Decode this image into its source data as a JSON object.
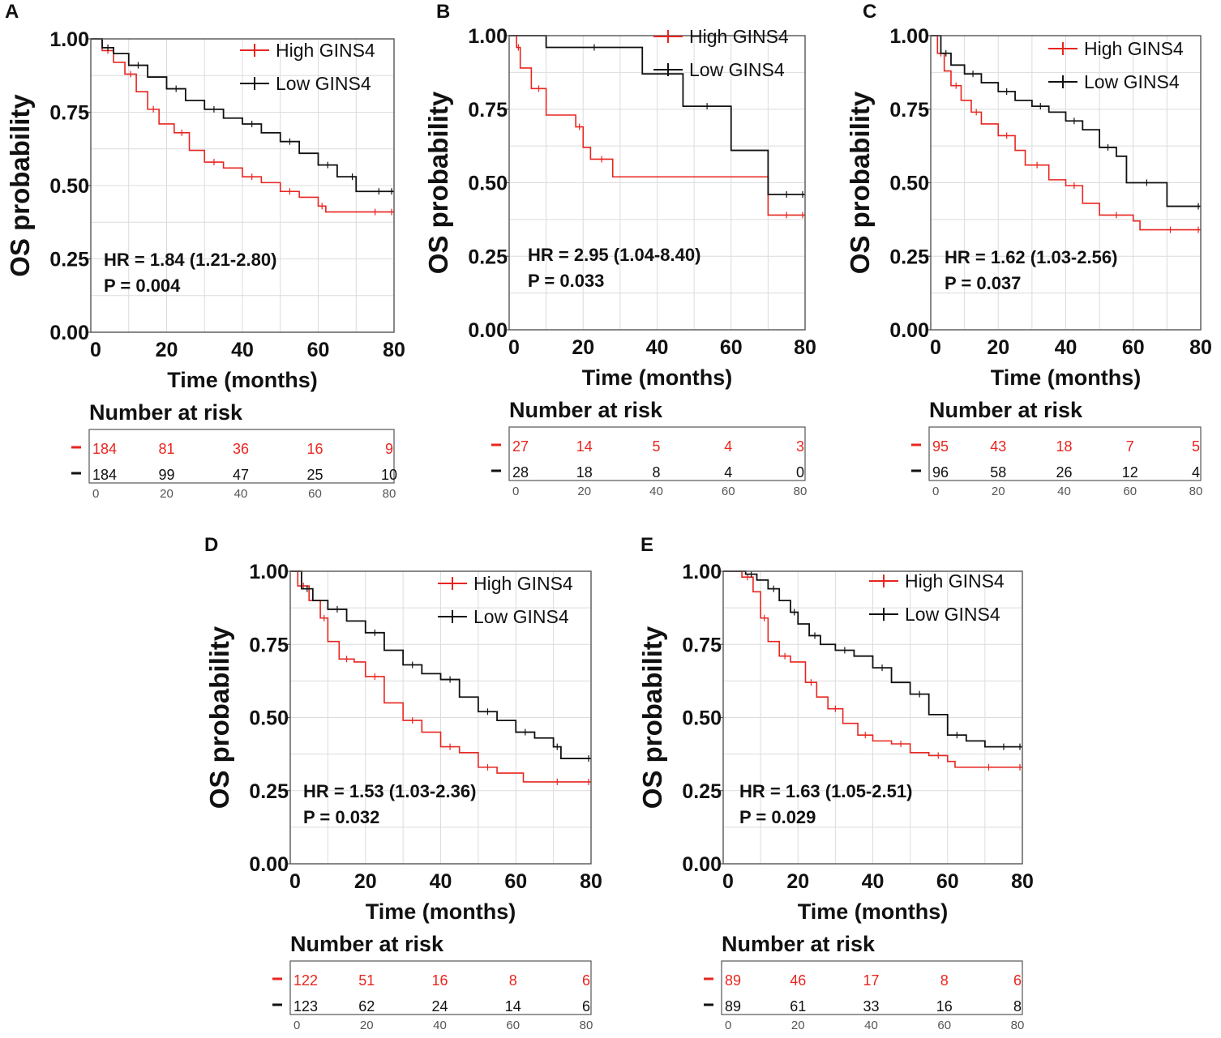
{
  "colors": {
    "high": "#e8251f",
    "low": "#111111",
    "grid": "#dcdcdc",
    "frame": "#555555",
    "text": "#111111"
  },
  "chart_data": [
    {
      "type": "line",
      "panel_label": "A",
      "ylabel": "OS probability",
      "xlabel": "Time (months)",
      "xlim": [
        0,
        80
      ],
      "ylim": [
        0,
        1
      ],
      "x_ticks": [
        "0",
        "20",
        "40",
        "60",
        "80"
      ],
      "y_ticks": [
        "0.00",
        "0.25",
        "0.50",
        "0.75",
        "1.00"
      ],
      "legend": [
        "High GINS4",
        "Low GINS4"
      ],
      "hr_text": "HR = 1.84 (1.21-2.80)",
      "p_text": "P = 0.004",
      "risk_title": "Number at risk",
      "risk_high": [
        "184",
        "81",
        "36",
        "16",
        "9"
      ],
      "risk_low": [
        "184",
        "99",
        "47",
        "25",
        "10"
      ],
      "series": [
        {
          "name": "High GINS4",
          "x": [
            0,
            3,
            6,
            9,
            12,
            15,
            18,
            22,
            26,
            30,
            35,
            40,
            45,
            50,
            55,
            60,
            62,
            70,
            80
          ],
          "y": [
            1.0,
            0.96,
            0.92,
            0.88,
            0.82,
            0.76,
            0.71,
            0.68,
            0.62,
            0.58,
            0.56,
            0.53,
            0.51,
            0.48,
            0.46,
            0.43,
            0.41,
            0.41,
            0.41
          ]
        },
        {
          "name": "Low GINS4",
          "x": [
            0,
            3,
            6,
            10,
            15,
            20,
            25,
            30,
            35,
            40,
            45,
            50,
            55,
            60,
            65,
            68,
            70,
            72,
            80
          ],
          "y": [
            1.0,
            0.97,
            0.95,
            0.91,
            0.87,
            0.83,
            0.79,
            0.76,
            0.73,
            0.71,
            0.68,
            0.65,
            0.61,
            0.57,
            0.53,
            0.53,
            0.48,
            0.48,
            0.48
          ]
        }
      ]
    },
    {
      "type": "line",
      "panel_label": "B",
      "ylabel": "OS probability",
      "xlabel": "Time (months)",
      "xlim": [
        0,
        80
      ],
      "ylim": [
        0,
        1
      ],
      "x_ticks": [
        "0",
        "20",
        "40",
        "60",
        "80"
      ],
      "y_ticks": [
        "0.00",
        "0.25",
        "0.50",
        "0.75",
        "1.00"
      ],
      "legend": [
        "High GINS4",
        "Low GINS4"
      ],
      "hr_text": "HR = 2.95 (1.04-8.40)",
      "p_text": "P = 0.033",
      "risk_title": "Number at risk",
      "risk_high": [
        "27",
        "14",
        "5",
        "4",
        "3"
      ],
      "risk_low": [
        "28",
        "18",
        "8",
        "4",
        "0"
      ],
      "series": [
        {
          "name": "High GINS4",
          "x": [
            0,
            2,
            3,
            6,
            10,
            18,
            20,
            22,
            28,
            70,
            80
          ],
          "y": [
            1.0,
            0.96,
            0.89,
            0.82,
            0.73,
            0.69,
            0.62,
            0.58,
            0.52,
            0.39,
            0.39
          ]
        },
        {
          "name": "Low GINS4",
          "x": [
            0,
            10,
            36,
            47,
            60,
            70,
            80
          ],
          "y": [
            1.0,
            0.96,
            0.87,
            0.76,
            0.61,
            0.46,
            0.46
          ]
        }
      ]
    },
    {
      "type": "line",
      "panel_label": "C",
      "ylabel": "OS probability",
      "xlabel": "Time (months)",
      "xlim": [
        0,
        80
      ],
      "ylim": [
        0,
        1
      ],
      "x_ticks": [
        "0",
        "20",
        "40",
        "60",
        "80"
      ],
      "y_ticks": [
        "0.00",
        "0.25",
        "0.50",
        "0.75",
        "1.00"
      ],
      "legend": [
        "High GINS4",
        "Low GINS4"
      ],
      "hr_text": "HR = 1.62 (1.03-2.56)",
      "p_text": "P = 0.037",
      "risk_title": "Number at risk",
      "risk_high": [
        "95",
        "43",
        "18",
        "7",
        "5"
      ],
      "risk_low": [
        "96",
        "58",
        "26",
        "12",
        "4"
      ],
      "series": [
        {
          "name": "High GINS4",
          "x": [
            0,
            2,
            4,
            6,
            9,
            12,
            15,
            20,
            25,
            28,
            35,
            40,
            45,
            50,
            60,
            62,
            80
          ],
          "y": [
            1.0,
            0.94,
            0.88,
            0.83,
            0.78,
            0.74,
            0.7,
            0.66,
            0.61,
            0.56,
            0.51,
            0.49,
            0.43,
            0.39,
            0.37,
            0.34,
            0.34
          ]
        },
        {
          "name": "Low GINS4",
          "x": [
            0,
            3,
            6,
            10,
            15,
            20,
            25,
            30,
            35,
            40,
            45,
            50,
            55,
            58,
            70,
            80
          ],
          "y": [
            1.0,
            0.94,
            0.9,
            0.87,
            0.84,
            0.81,
            0.78,
            0.76,
            0.74,
            0.71,
            0.68,
            0.62,
            0.59,
            0.5,
            0.42,
            0.42
          ]
        }
      ]
    },
    {
      "type": "line",
      "panel_label": "D",
      "ylabel": "OS probability",
      "xlabel": "Time (months)",
      "xlim": [
        0,
        80
      ],
      "ylim": [
        0,
        1
      ],
      "x_ticks": [
        "0",
        "20",
        "40",
        "60",
        "80"
      ],
      "y_ticks": [
        "0.00",
        "0.25",
        "0.50",
        "0.75",
        "1.00"
      ],
      "legend": [
        "High GINS4",
        "Low GINS4"
      ],
      "hr_text": "HR = 1.53 (1.03-2.36)",
      "p_text": "P = 0.032",
      "risk_title": "Number at risk",
      "risk_high": [
        "122",
        "51",
        "16",
        "8",
        "6"
      ],
      "risk_low": [
        "123",
        "62",
        "24",
        "14",
        "6"
      ],
      "series": [
        {
          "name": "High GINS4",
          "x": [
            0,
            2,
            5,
            8,
            10,
            13,
            17,
            20,
            25,
            30,
            35,
            40,
            45,
            50,
            55,
            62,
            80
          ],
          "y": [
            1.0,
            0.95,
            0.9,
            0.84,
            0.76,
            0.7,
            0.69,
            0.64,
            0.55,
            0.49,
            0.45,
            0.4,
            0.38,
            0.33,
            0.31,
            0.28,
            0.28
          ]
        },
        {
          "name": "Low GINS4",
          "x": [
            0,
            3,
            6,
            10,
            15,
            20,
            25,
            30,
            35,
            40,
            45,
            50,
            55,
            60,
            65,
            70,
            72,
            80
          ],
          "y": [
            1.0,
            0.94,
            0.9,
            0.87,
            0.83,
            0.79,
            0.73,
            0.68,
            0.65,
            0.63,
            0.57,
            0.52,
            0.49,
            0.45,
            0.43,
            0.4,
            0.36,
            0.36
          ]
        }
      ]
    },
    {
      "type": "line",
      "panel_label": "E",
      "ylabel": "OS probability",
      "xlabel": "Time (months)",
      "xlim": [
        0,
        80
      ],
      "ylim": [
        0,
        1
      ],
      "x_ticks": [
        "0",
        "20",
        "40",
        "60",
        "80"
      ],
      "y_ticks": [
        "0.00",
        "0.25",
        "0.50",
        "0.75",
        "1.00"
      ],
      "legend": [
        "High GINS4",
        "Low GINS4"
      ],
      "hr_text": "HR = 1.63 (1.05-2.51)",
      "p_text": "P = 0.029",
      "risk_title": "Number at risk",
      "risk_high": [
        "89",
        "46",
        "17",
        "8",
        "6"
      ],
      "risk_low": [
        "89",
        "61",
        "33",
        "16",
        "8"
      ],
      "series": [
        {
          "name": "High GINS4",
          "x": [
            0,
            5,
            8,
            10,
            12,
            15,
            18,
            22,
            25,
            28,
            32,
            36,
            40,
            45,
            50,
            55,
            60,
            62,
            80
          ],
          "y": [
            1.0,
            0.98,
            0.93,
            0.84,
            0.76,
            0.71,
            0.69,
            0.62,
            0.57,
            0.53,
            0.48,
            0.44,
            0.42,
            0.41,
            0.38,
            0.37,
            0.35,
            0.33,
            0.33
          ]
        },
        {
          "name": "Low GINS4",
          "x": [
            0,
            6,
            9,
            12,
            15,
            18,
            20,
            23,
            26,
            30,
            35,
            40,
            45,
            50,
            55,
            60,
            65,
            70,
            80
          ],
          "y": [
            1.0,
            0.99,
            0.97,
            0.94,
            0.9,
            0.86,
            0.82,
            0.78,
            0.75,
            0.73,
            0.71,
            0.67,
            0.62,
            0.58,
            0.51,
            0.44,
            0.42,
            0.4,
            0.4
          ]
        }
      ]
    }
  ]
}
